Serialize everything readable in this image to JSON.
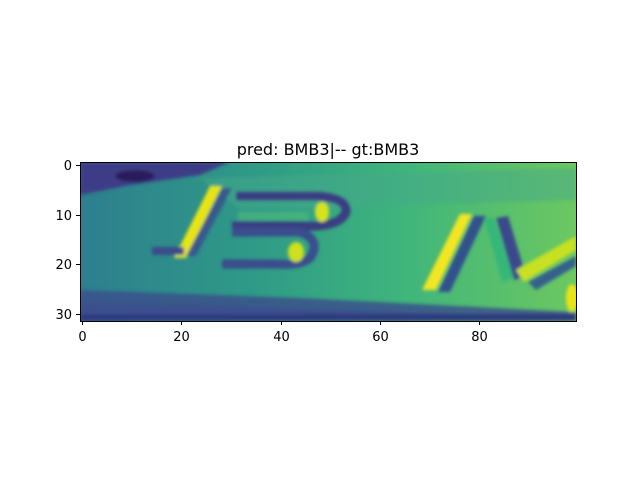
{
  "figure": {
    "title": "pred: BMB3|-- gt:BMB3",
    "colormap": "viridis",
    "image_rows": 32,
    "image_cols": 100
  },
  "axes": {
    "x_ticks": [
      {
        "value": 0,
        "label": "0"
      },
      {
        "value": 20,
        "label": "20"
      },
      {
        "value": 40,
        "label": "40"
      },
      {
        "value": 60,
        "label": "60"
      },
      {
        "value": 80,
        "label": "80"
      }
    ],
    "y_ticks": [
      {
        "value": 0,
        "label": "0"
      },
      {
        "value": 10,
        "label": "10"
      },
      {
        "value": 20,
        "label": "20"
      },
      {
        "value": 30,
        "label": "30"
      }
    ]
  }
}
